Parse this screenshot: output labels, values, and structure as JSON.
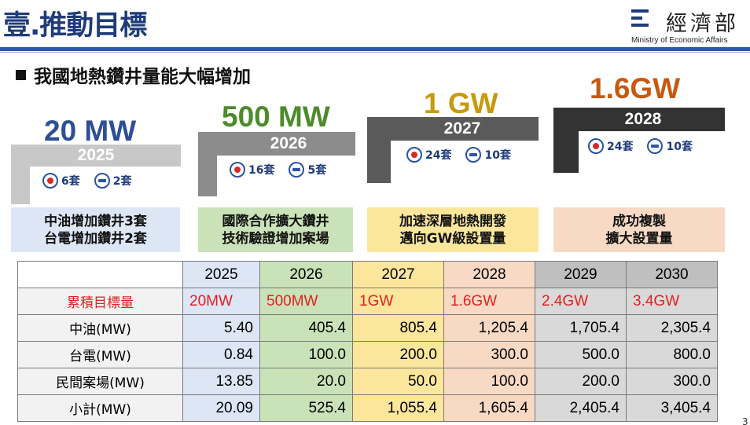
{
  "header": {
    "title": "壹.推動目標",
    "logo_cn": "經濟部",
    "logo_en": "Ministry of Economic Affairs"
  },
  "subtitle": "我國地熱鑽井量能大幅增加",
  "steps": [
    {
      "capacity": "20 MW",
      "year": "2025",
      "cpc_count": "6套",
      "taipower_count": "2套",
      "label_line1": "中油增加鑽井3套",
      "label_line2": "台電增加鑽井2套",
      "capacity_color": "#2e4f94",
      "bar_color": "#c8c8c8",
      "label_bg": "#dce6f4"
    },
    {
      "capacity": "500 MW",
      "year": "2026",
      "cpc_count": "16套",
      "taipower_count": "5套",
      "label_line1": "國際合作擴大鑽井",
      "label_line2": "技術驗證增加案場",
      "capacity_color": "#4f8a2b",
      "bar_color": "#8c8c8c",
      "label_bg": "#c9e2b8"
    },
    {
      "capacity": "1 GW",
      "year": "2027",
      "cpc_count": "24套",
      "taipower_count": "10套",
      "label_line1": "加速深層地熱開發",
      "label_line2": "邁向GW級設置量",
      "capacity_color": "#c79a0d",
      "bar_color": "#5a5a5a",
      "label_bg": "#fbe69c"
    },
    {
      "capacity": "1.6GW",
      "year": "2028",
      "cpc_count": "24套",
      "taipower_count": "10套",
      "label_line1": "成功複製",
      "label_line2": "擴大設置量",
      "capacity_color": "#c55a11",
      "bar_color": "#333333",
      "label_bg": "#f8d9c4"
    }
  ],
  "table": {
    "years": [
      "2025",
      "2026",
      "2027",
      "2028",
      "2029",
      "2030"
    ],
    "rows": [
      {
        "label": "累積目標量",
        "values": [
          "20MW",
          "500MW",
          "1GW",
          "1.6GW",
          "2.4GW",
          "3.4GW"
        ]
      },
      {
        "label": "中油(MW)",
        "values": [
          "5.40",
          "405.4",
          "805.4",
          "1,205.4",
          "1,705.4",
          "2,305.4"
        ]
      },
      {
        "label": "台電(MW)",
        "values": [
          "0.84",
          "100.0",
          "200.0",
          "300.0",
          "500.0",
          "800.0"
        ]
      },
      {
        "label": "民間案場(MW)",
        "values": [
          "13.85",
          "20.0",
          "50.0",
          "100.0",
          "200.0",
          "300.0"
        ]
      },
      {
        "label": "小計(MW)",
        "values": [
          "20.09",
          "525.4",
          "1,055.4",
          "1,605.4",
          "2,405.4",
          "3,405.4"
        ]
      }
    ]
  },
  "page_number": "3",
  "icons": {
    "cpc": "cpc-logo-icon",
    "taipower": "taipower-logo-icon"
  }
}
